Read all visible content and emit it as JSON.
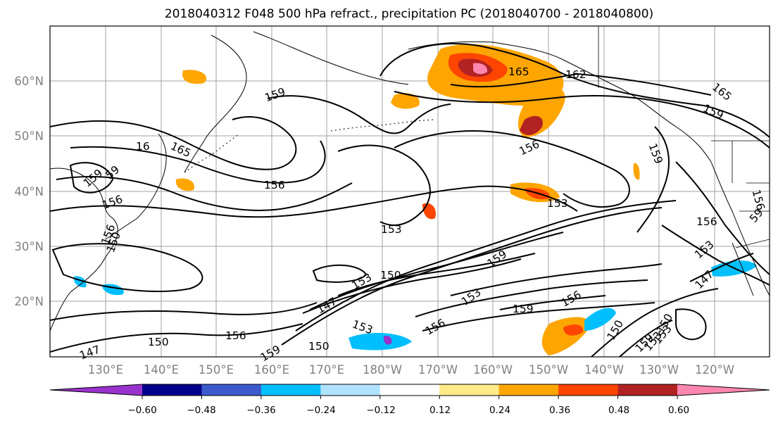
{
  "title": "2018040312 F048 500 hPa refract., precipitation PC (2018040700 - 2018040800)",
  "map": {
    "lat_labels": [
      "60°N",
      "50°N",
      "40°N",
      "30°N",
      "20°N"
    ],
    "lon_labels": [
      "130°E",
      "140°E",
      "150°E",
      "160°E",
      "170°E",
      "180°W",
      "170°W",
      "160°W",
      "150°W",
      "140°W",
      "130°W",
      "120°W"
    ],
    "contour_labels": [
      "165",
      "162",
      "165",
      "159",
      "159",
      "159",
      "16",
      "165",
      "156",
      "156",
      "159",
      "156",
      "153",
      "153",
      "156",
      "159",
      "153",
      "150",
      "159",
      "153",
      "156",
      "147",
      "159",
      "153",
      "156",
      "150",
      "156",
      "150",
      "159",
      "150",
      "147",
      "153",
      "147",
      "156",
      "59",
      "153",
      "153",
      "150",
      "156",
      "59",
      "150"
    ],
    "colors": {
      "land_outline": "#000000",
      "grid": "#a0a0a0",
      "contour": "#000000"
    }
  },
  "colorbar": {
    "colors": [
      "#9932cc",
      "#00008b",
      "#3c5acd",
      "#00bfff",
      "#b0e2ff",
      "#ffffff",
      "#ffea88",
      "#ffa500",
      "#ff4500",
      "#b22222",
      "#ff86b0"
    ],
    "tick_labels": [
      "−0.60",
      "−0.48",
      "−0.36",
      "−0.24",
      "−0.12",
      "0.12",
      "0.24",
      "0.36",
      "0.48",
      "0.60"
    ],
    "extend": "both"
  }
}
